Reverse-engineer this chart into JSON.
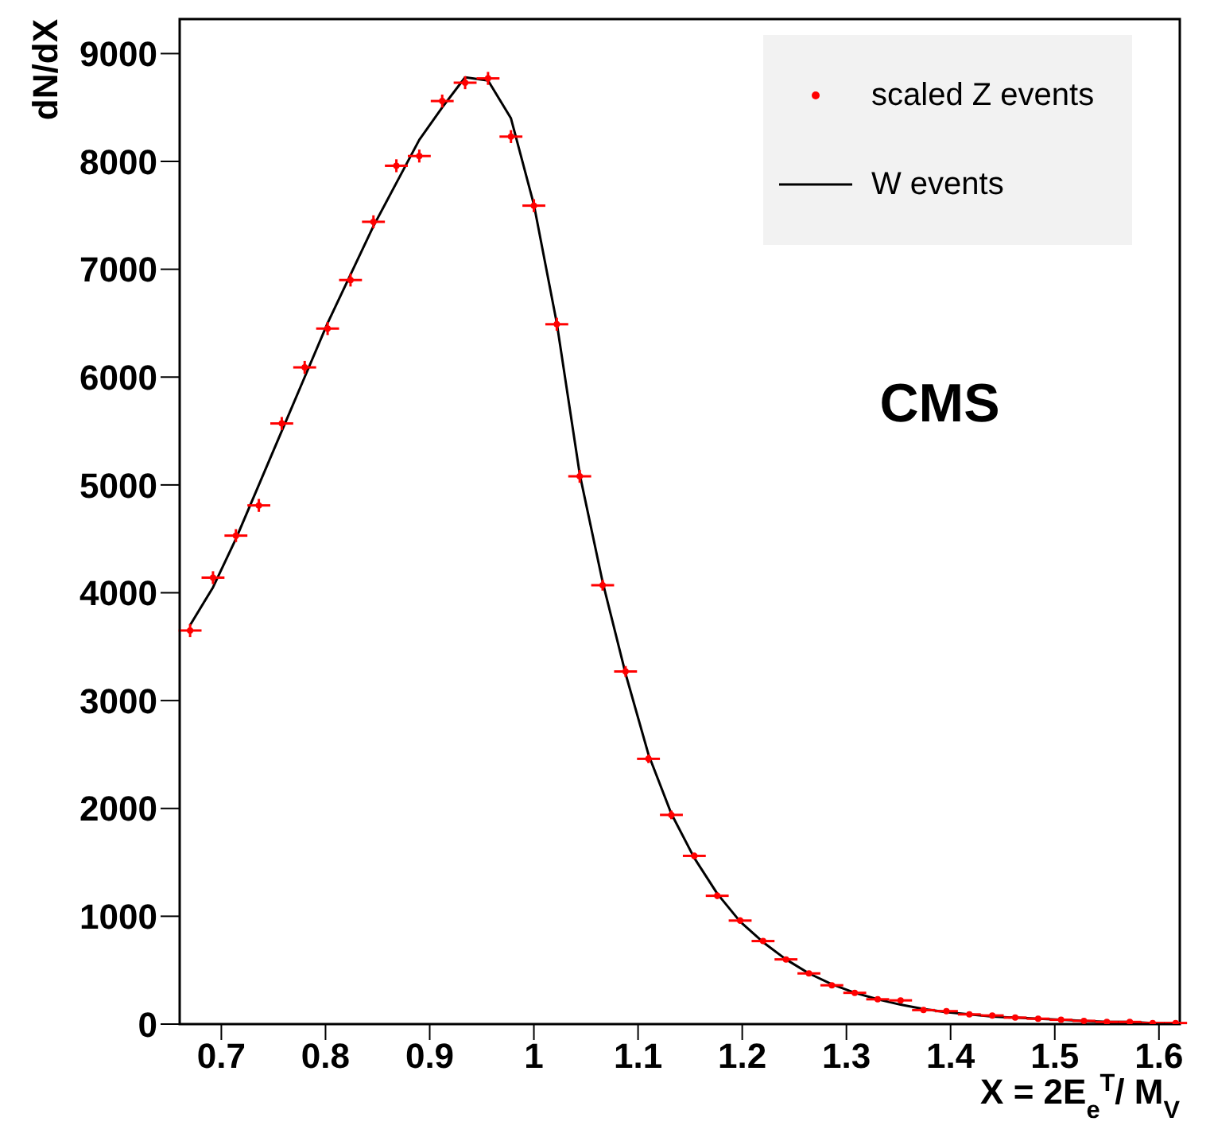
{
  "chart_data": {
    "type": "scatter",
    "xlabel": "X = 2E$_{e}$$^{T}$/ M$_{V}$",
    "ylabel": "dN/dX",
    "annotations": [
      "CMS"
    ],
    "xlim": [
      0.66,
      1.62
    ],
    "xticks": [
      0.7,
      0.8,
      0.9,
      1,
      1.1,
      1.2,
      1.3,
      1.4,
      1.5,
      1.6
    ],
    "ylim": [
      0,
      9320
    ],
    "yticks": [
      0,
      1000,
      2000,
      3000,
      4000,
      5000,
      6000,
      7000,
      8000,
      9000
    ],
    "legend": "top right",
    "series": [
      {
        "name": "scaled Z events",
        "color": "#ff0000",
        "marker": "circle",
        "x": [
          0.67,
          0.692,
          0.714,
          0.736,
          0.758,
          0.78,
          0.802,
          0.824,
          0.846,
          0.868,
          0.89,
          0.912,
          0.934,
          0.956,
          0.978,
          1.0,
          1.022,
          1.044,
          1.066,
          1.088,
          1.11,
          1.132,
          1.154,
          1.176,
          1.198,
          1.22,
          1.242,
          1.264,
          1.286,
          1.308,
          1.33,
          1.352,
          1.374,
          1.396,
          1.418,
          1.44,
          1.462,
          1.484,
          1.506,
          1.528,
          1.55,
          1.572,
          1.594,
          1.616
        ],
        "values": [
          3650,
          4140,
          4530,
          4810,
          5570,
          6090,
          6450,
          6900,
          7440,
          7960,
          8050,
          8560,
          8730,
          8770,
          8230,
          7590,
          6490,
          5080,
          4070,
          3270,
          2460,
          1940,
          1560,
          1190,
          960,
          770,
          600,
          470,
          360,
          290,
          230,
          220,
          130,
          120,
          90,
          80,
          60,
          50,
          40,
          30,
          20,
          20,
          10,
          10
        ],
        "errors": [
          60,
          60,
          60,
          60,
          60,
          60,
          60,
          60,
          60,
          60,
          60,
          60,
          60,
          60,
          60,
          60,
          60,
          60,
          50,
          50,
          40,
          40,
          30,
          30,
          30,
          20,
          20,
          20,
          20,
          20,
          20,
          20,
          10,
          10,
          10,
          10,
          10,
          10,
          10,
          10,
          10,
          10,
          10,
          10
        ],
        "xerrors": [
          0.011,
          0.011,
          0.011,
          0.011,
          0.011,
          0.011,
          0.011,
          0.011,
          0.011,
          0.011,
          0.011,
          0.011,
          0.011,
          0.011,
          0.011,
          0.011,
          0.011,
          0.011,
          0.011,
          0.011,
          0.011,
          0.011,
          0.011,
          0.011,
          0.011,
          0.011,
          0.011,
          0.011,
          0.011,
          0.011,
          0.011,
          0.011,
          0.011,
          0.011,
          0.011,
          0.011,
          0.011,
          0.011,
          0.011,
          0.011,
          0.011,
          0.011,
          0.011,
          0.011
        ]
      },
      {
        "name": "W events",
        "type": "line",
        "color": "#000000",
        "marker": "none",
        "line_style": "solid",
        "x": [
          0.67,
          0.692,
          0.714,
          0.736,
          0.758,
          0.78,
          0.802,
          0.824,
          0.846,
          0.868,
          0.89,
          0.912,
          0.934,
          0.956,
          0.978,
          1.0,
          1.022,
          1.044,
          1.066,
          1.088,
          1.11,
          1.132,
          1.154,
          1.176,
          1.198,
          1.22,
          1.242,
          1.264,
          1.286,
          1.308,
          1.33,
          1.352,
          1.374,
          1.396,
          1.418,
          1.44,
          1.462,
          1.484,
          1.506,
          1.528,
          1.55,
          1.572,
          1.594,
          1.616
        ],
        "values": [
          3700,
          4050,
          4500,
          5000,
          5500,
          6000,
          6500,
          6950,
          7400,
          7800,
          8200,
          8500,
          8780,
          8750,
          8400,
          7600,
          6500,
          5100,
          4100,
          3250,
          2500,
          1950,
          1540,
          1210,
          950,
          760,
          600,
          470,
          370,
          290,
          230,
          180,
          140,
          110,
          90,
          70,
          60,
          50,
          40,
          30,
          20,
          20,
          10,
          10
        ]
      }
    ]
  }
}
